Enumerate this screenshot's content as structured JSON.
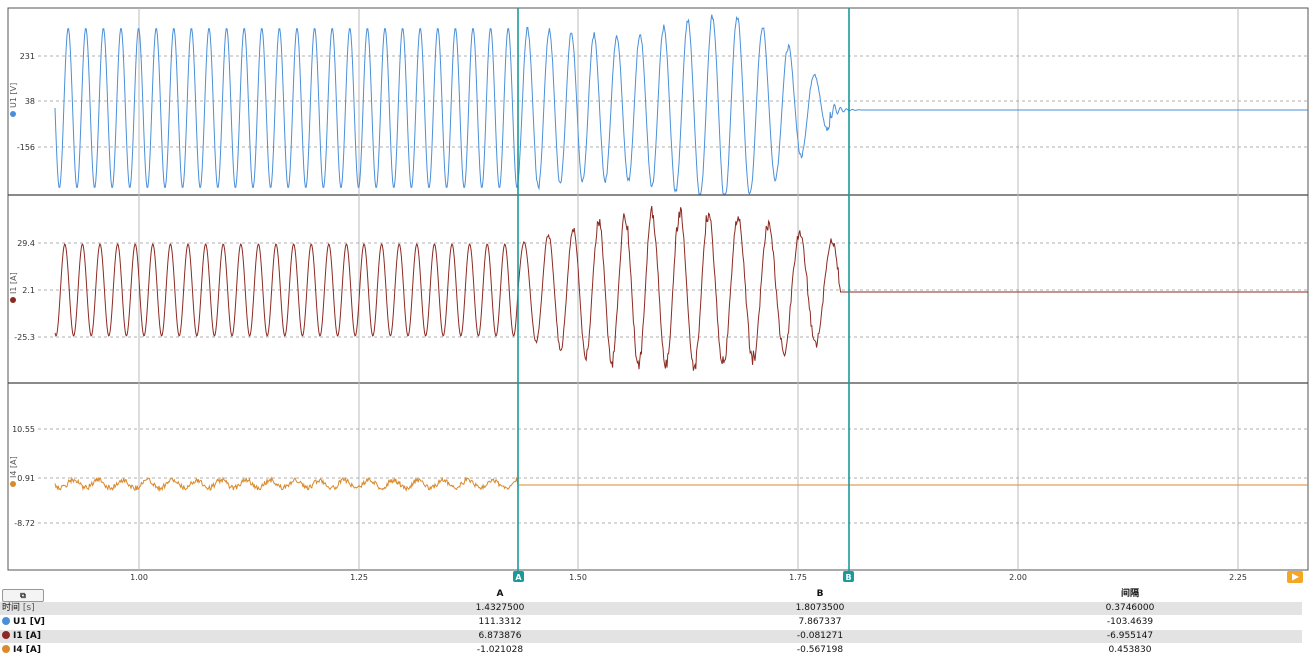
{
  "colors": {
    "u1": "#4a90d9",
    "i1": "#8b2a22",
    "i4": "#d98a2b",
    "cursor": "#1a9a9a",
    "grid": "#999999",
    "play": "#f5a623"
  },
  "channels": [
    {
      "label": "U1 [V]",
      "ticks": [
        "231",
        "38",
        "-156"
      ]
    },
    {
      "label": "I1 [A]",
      "ticks": [
        "29.4",
        "2.1",
        "-25.3"
      ]
    },
    {
      "label": "I4 [A]",
      "ticks": [
        "10.55",
        "0.91",
        "-8.72"
      ]
    }
  ],
  "x_axis": {
    "ticks": [
      "1.00",
      "1.25",
      "1.50",
      "1.75",
      "2.00",
      "2.25"
    ]
  },
  "cursors": {
    "a_label": "A",
    "b_label": "B"
  },
  "table": {
    "copy_icon": "copy-icon",
    "headers": [
      "",
      "A",
      "B",
      "间隔"
    ],
    "rows": [
      {
        "name": "时间",
        "unit": "[s]",
        "a": "1.4327500",
        "b": "1.8073500",
        "delta": "0.3746000"
      },
      {
        "name": "U1 [V]",
        "unit": "",
        "a": "111.3312",
        "b": "7.867337",
        "delta": "-103.4639"
      },
      {
        "name": "I1 [A]",
        "unit": "",
        "a": "6.873876",
        "b": "-0.081271",
        "delta": "-6.955147"
      },
      {
        "name": "I4 [A]",
        "unit": "",
        "a": "-1.021028",
        "b": "-0.567198",
        "delta": "0.453830"
      }
    ]
  }
}
